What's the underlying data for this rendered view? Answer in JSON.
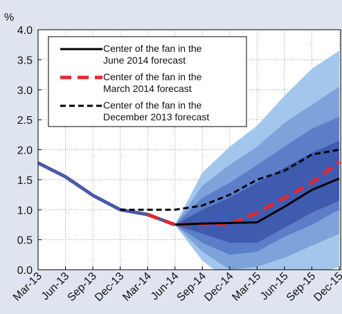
{
  "chart_data": {
    "type": "fan",
    "y_label": "%",
    "categories": [
      "Mar-13",
      "Jun-13",
      "Sep-13",
      "Dec-13",
      "Mar-14",
      "Jun-14",
      "Sep-14",
      "Dec-14",
      "Mar-15",
      "Jun-15",
      "Sep-15",
      "Dec-15"
    ],
    "ylim": [
      0,
      4
    ],
    "yticks": [
      {
        "value": 0,
        "label": "0.0"
      },
      {
        "value": 0.5,
        "label": "0.5"
      },
      {
        "value": 1,
        "label": "1.0"
      },
      {
        "value": 1.5,
        "label": "1.5"
      },
      {
        "value": 2,
        "label": "2.0"
      },
      {
        "value": 2.5,
        "label": "2.5"
      },
      {
        "value": 3,
        "label": "3.0"
      },
      {
        "value": 3.5,
        "label": "3.5"
      },
      {
        "value": 4,
        "label": "4.0"
      }
    ],
    "grid": true,
    "fan": [
      {
        "color": "#a3c7ec",
        "upper": [
          null,
          null,
          null,
          null,
          null,
          0.75,
          1.62,
          2.05,
          2.4,
          2.9,
          3.35,
          3.65
        ],
        "lower": [
          null,
          null,
          null,
          null,
          null,
          0.75,
          0.15,
          -0.2,
          -0.4,
          -0.2,
          -0.1,
          0.05
        ]
      },
      {
        "color": "#7ea3da",
        "upper": [
          null,
          null,
          null,
          null,
          null,
          0.75,
          1.4,
          1.75,
          2.05,
          2.45,
          2.75,
          3.05
        ],
        "lower": [
          null,
          null,
          null,
          null,
          null,
          0.75,
          0.3,
          0.0,
          0.05,
          0.2,
          0.4,
          0.6
        ]
      },
      {
        "color": "#5c7ec8",
        "upper": [
          null,
          null,
          null,
          null,
          null,
          0.75,
          1.2,
          1.45,
          1.75,
          2.05,
          2.35,
          2.55
        ],
        "lower": [
          null,
          null,
          null,
          null,
          null,
          0.75,
          0.45,
          0.25,
          0.3,
          0.55,
          0.75,
          1.0
        ]
      },
      {
        "color": "#3f5bb0",
        "upper": [
          null,
          null,
          null,
          null,
          null,
          0.75,
          1.0,
          1.2,
          1.45,
          1.7,
          1.95,
          2.15
        ],
        "lower": [
          null,
          null,
          null,
          null,
          null,
          0.75,
          0.6,
          0.45,
          0.45,
          0.7,
          0.95,
          1.15
        ]
      }
    ],
    "history": {
      "color": "#4a5aa8",
      "values": [
        1.78,
        1.55,
        1.24,
        1.0,
        0.92,
        0.75,
        null,
        null,
        null,
        null,
        null,
        null
      ]
    },
    "series": [
      {
        "name": "Center of the fan in the June 2014 forecast",
        "color": "#000000",
        "dash": "solid",
        "values": [
          null,
          null,
          null,
          null,
          null,
          0.75,
          0.77,
          0.78,
          0.79,
          1.05,
          1.33,
          1.52
        ]
      },
      {
        "name": "Center of the fan in the March 2014 forecast",
        "color": "#e8262b",
        "dash": "dashed",
        "values": [
          null,
          null,
          null,
          null,
          0.92,
          0.75,
          0.76,
          0.76,
          0.95,
          1.2,
          1.45,
          1.8
        ]
      },
      {
        "name": "Center of the fan in the December 2013 forecast",
        "color": "#000000",
        "dash": "dashed",
        "values": [
          null,
          null,
          null,
          1.0,
          1.0,
          1.0,
          1.07,
          1.25,
          1.5,
          1.65,
          1.92,
          2.0
        ]
      }
    ],
    "legend": "upper left"
  }
}
